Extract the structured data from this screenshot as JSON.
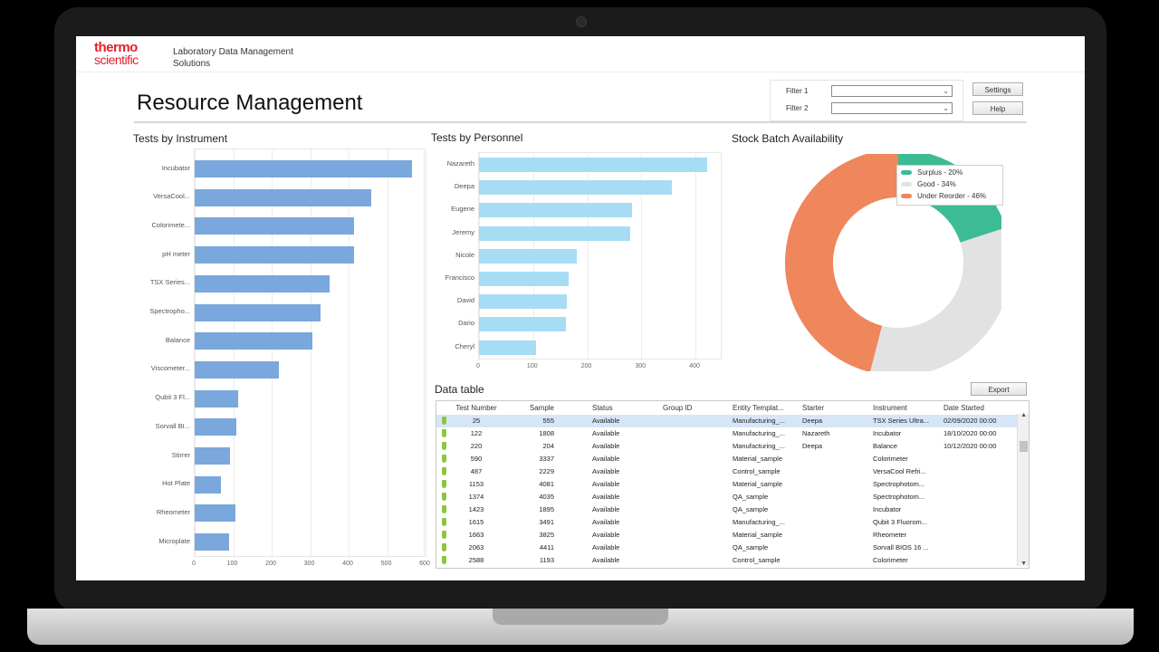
{
  "brand": {
    "line1": "thermo",
    "line2": "scientific"
  },
  "app_name": "Laboratory Data Management Solutions",
  "page_title": "Resource Management",
  "filters": [
    {
      "label": "Filter 1",
      "value": ""
    },
    {
      "label": "Filter 2",
      "value": ""
    }
  ],
  "buttons": {
    "settings": "Settings",
    "help": "Help",
    "export": "Export"
  },
  "chart_data": [
    {
      "type": "bar",
      "orientation": "horizontal",
      "title": "Tests by Instrument",
      "categories": [
        "Incubator",
        "VersaCool...",
        "Colorimete...",
        "pH meter",
        "TSX Series...",
        "Spectropho...",
        "Balance",
        "Viscometer...",
        "Qubit 3 Fl...",
        "Sorvall BI...",
        "Stirrer",
        "Hot Plate",
        "Rheometer",
        "Microplate"
      ],
      "values": [
        565,
        458,
        415,
        414,
        350,
        328,
        305,
        218,
        112,
        108,
        92,
        69,
        105,
        89
      ],
      "xlim": [
        0,
        600
      ],
      "xticks": [
        "0",
        "100",
        "200",
        "300",
        "400",
        "500",
        "600"
      ],
      "grid": true,
      "color": "#7aa7dc"
    },
    {
      "type": "bar",
      "orientation": "horizontal",
      "title": "Tests by Personnel",
      "categories": [
        "Nazareth",
        "Deepa",
        "Eugene",
        "Jeremy",
        "Nicole",
        "Francisco",
        "David",
        "Dario",
        "Cheryl"
      ],
      "values": [
        422,
        356,
        282,
        280,
        181,
        165,
        162,
        160,
        105
      ],
      "xlim": [
        0,
        450
      ],
      "xticks": [
        "0",
        "100",
        "200",
        "300",
        "400"
      ],
      "grid": true,
      "color": "#a7dcf5"
    },
    {
      "type": "pie",
      "donut": true,
      "title": "Stock Batch Availability",
      "labels": [
        "Surplus - 20%",
        "Good - 34%",
        "Under Reorder - 46%"
      ],
      "values": [
        20,
        34,
        46
      ],
      "colors": [
        "#3dbb94",
        "#e2e2e2",
        "#ef865c"
      ],
      "legend": "top-right"
    }
  ],
  "data_table": {
    "title": "Data table",
    "columns": [
      "Test Number",
      "Sample",
      "Status",
      "Group ID",
      "Entity Templat...",
      "Starter",
      "Instrument",
      "Date Started"
    ],
    "rows": [
      [
        "25",
        "555",
        "Available",
        "",
        "Manufacturing_...",
        "Deepa",
        "TSX Series Ultra...",
        "02/09/2020 00:00"
      ],
      [
        "122",
        "1808",
        "Available",
        "",
        "Manufacturing_...",
        "Nazareth",
        "Incubator",
        "18/10/2020 00:00"
      ],
      [
        "220",
        "204",
        "Available",
        "",
        "Manufacturing_...",
        "Deepa",
        "Balance",
        "10/12/2020 00:00"
      ],
      [
        "590",
        "3337",
        "Available",
        "",
        "Material_sample",
        "",
        "Colorimeter",
        ""
      ],
      [
        "487",
        "2229",
        "Available",
        "",
        "Control_sample",
        "",
        "VersaCool Refri...",
        ""
      ],
      [
        "1153",
        "4081",
        "Available",
        "",
        "Material_sample",
        "",
        "Spectrophotom...",
        ""
      ],
      [
        "1374",
        "4035",
        "Available",
        "",
        "QA_sample",
        "",
        "Spectrophotom...",
        ""
      ],
      [
        "1423",
        "1895",
        "Available",
        "",
        "QA_sample",
        "",
        "Incubator",
        ""
      ],
      [
        "1615",
        "3491",
        "Available",
        "",
        "Manufacturing_...",
        "",
        "Qubit 3 Fluorom...",
        ""
      ],
      [
        "1663",
        "3825",
        "Available",
        "",
        "Material_sample",
        "",
        "Rheometer",
        ""
      ],
      [
        "2063",
        "4411",
        "Available",
        "",
        "QA_sample",
        "",
        "Sorvall BIOS 16 ...",
        ""
      ],
      [
        "2588",
        "1193",
        "Available",
        "",
        "Control_sample",
        "",
        "Colorimeter",
        ""
      ]
    ],
    "selected_row": 0
  },
  "icons": {
    "row_status": "flask-icon",
    "dropdown": "chevron-down-icon",
    "scroll_up": "arrow-up-icon",
    "scroll_down": "arrow-down-icon"
  }
}
